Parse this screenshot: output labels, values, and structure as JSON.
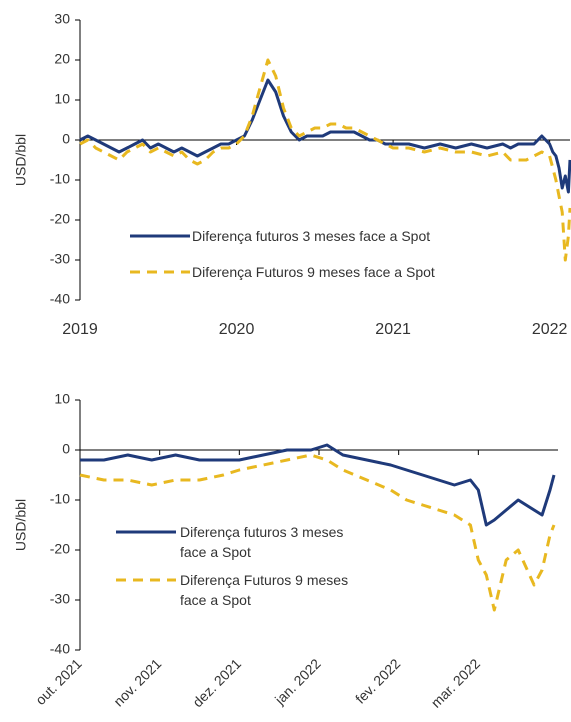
{
  "chart_data": [
    {
      "type": "line",
      "ylabel": "USD/bbl",
      "x": [
        2019.0,
        2019.05,
        2019.1,
        2019.15,
        2019.2,
        2019.25,
        2019.3,
        2019.35,
        2019.4,
        2019.45,
        2019.5,
        2019.55,
        2019.6,
        2019.65,
        2019.7,
        2019.75,
        2019.8,
        2019.85,
        2019.9,
        2019.95,
        2020.0,
        2020.05,
        2020.1,
        2020.15,
        2020.2,
        2020.25,
        2020.3,
        2020.35,
        2020.4,
        2020.45,
        2020.5,
        2020.55,
        2020.6,
        2020.65,
        2020.7,
        2020.75,
        2020.8,
        2020.85,
        2020.9,
        2020.95,
        2021.0,
        2021.1,
        2021.2,
        2021.3,
        2021.4,
        2021.5,
        2021.6,
        2021.7,
        2021.75,
        2021.8,
        2021.85,
        2021.9,
        2021.95,
        2022.0,
        2022.02,
        2022.04,
        2022.06,
        2022.08,
        2022.1,
        2022.12,
        2022.13
      ],
      "series": [
        {
          "name": "Diferença futuros 3 meses face a Spot",
          "color": "#1f3a7a",
          "dash": false,
          "values": [
            0,
            1,
            0,
            -1,
            -2,
            -3,
            -2,
            -1,
            0,
            -2,
            -1,
            -2,
            -3,
            -2,
            -3,
            -4,
            -3,
            -2,
            -1,
            -1,
            0,
            1,
            5,
            10,
            15,
            12,
            6,
            2,
            0,
            1,
            1,
            1,
            2,
            2,
            2,
            2,
            1,
            0,
            0,
            -1,
            -1,
            -1,
            -2,
            -1,
            -2,
            -1,
            -2,
            -1,
            -2,
            -1,
            -1,
            -1,
            1,
            -1,
            -3,
            -4,
            -7,
            -12,
            -9,
            -13,
            -5
          ]
        },
        {
          "name": "Diferença Futuros 9 meses face a Spot",
          "color": "#e8b820",
          "dash": true,
          "values": [
            -1,
            0,
            -2,
            -3,
            -4,
            -5,
            -3,
            -2,
            -1,
            -3,
            -2,
            -3,
            -4,
            -3,
            -5,
            -6,
            -5,
            -3,
            -2,
            -2,
            -1,
            1,
            6,
            13,
            20,
            16,
            8,
            3,
            1,
            2,
            3,
            3,
            4,
            4,
            3,
            3,
            2,
            1,
            0,
            -1,
            -2,
            -2,
            -3,
            -2,
            -3,
            -3,
            -4,
            -3,
            -5,
            -5,
            -5,
            -4,
            -3,
            -4,
            -7,
            -10,
            -14,
            -18,
            -30,
            -24,
            -17
          ]
        }
      ],
      "xlim": [
        2019,
        2022.13
      ],
      "xticks": [
        2019,
        2020,
        2021,
        2022
      ],
      "ylim": [
        -40,
        30
      ],
      "yticks": [
        -40,
        -30,
        -20,
        -10,
        0,
        10,
        20,
        30
      ]
    },
    {
      "type": "line",
      "ylabel": "USD/bbl",
      "x": [
        0,
        0.3,
        0.6,
        0.9,
        1.2,
        1.5,
        1.8,
        2.0,
        2.3,
        2.6,
        2.9,
        3.1,
        3.3,
        3.6,
        3.9,
        4.1,
        4.3,
        4.5,
        4.7,
        4.9,
        5.0,
        5.1,
        5.2,
        5.35,
        5.5,
        5.7,
        5.8,
        5.9,
        5.95
      ],
      "series": [
        {
          "name": "Diferença futuros 3 meses face a Spot",
          "color": "#1f3a7a",
          "dash": false,
          "values": [
            -2,
            -2,
            -1,
            -2,
            -1,
            -2,
            -2,
            -2,
            -1,
            0,
            0,
            1,
            -1,
            -2,
            -3,
            -4,
            -5,
            -6,
            -7,
            -6,
            -8,
            -15,
            -14,
            -12,
            -10,
            -12,
            -13,
            -8,
            -5
          ]
        },
        {
          "name": "Diferença Futuros 9 meses face a Spot",
          "color": "#e8b820",
          "dash": true,
          "values": [
            -5,
            -6,
            -6,
            -7,
            -6,
            -6,
            -5,
            -4,
            -3,
            -2,
            -1,
            -2,
            -4,
            -6,
            -8,
            -10,
            -11,
            -12,
            -13,
            -15,
            -22,
            -25,
            -32,
            -22,
            -20,
            -27,
            -24,
            -17,
            -15
          ]
        }
      ],
      "xlim": [
        0,
        6
      ],
      "xticks": [
        {
          "value": 0,
          "label": "out. 2021"
        },
        {
          "value": 1,
          "label": "nov. 2021"
        },
        {
          "value": 2,
          "label": "dez. 2021"
        },
        {
          "value": 3,
          "label": "jan. 2022"
        },
        {
          "value": 4,
          "label": "fev. 2022"
        },
        {
          "value": 5,
          "label": "mar. 2022"
        }
      ],
      "ylim": [
        -40,
        10
      ],
      "yticks": [
        -40,
        -30,
        -20,
        -10,
        0,
        10
      ]
    }
  ]
}
